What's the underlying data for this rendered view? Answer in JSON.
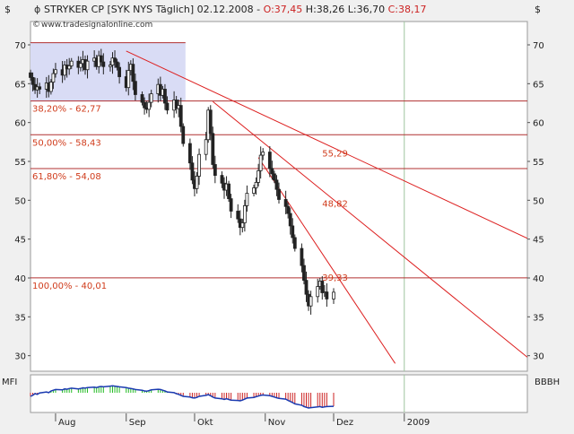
{
  "header": {
    "title": "STRYKER CP [SYK NYS  Täglich] 02.12.2008 - ",
    "ohlc_o": "O:37,45",
    "ohlc_h": " H:38,26",
    "ohlc_l": " L:36,70",
    "ohlc_c": " C:38,17",
    "watermark": "www.tradesignalonline.com",
    "currency_left": "$",
    "currency_right": "$"
  },
  "indicator": {
    "left_label": "MFI",
    "right_label": "BBBH"
  },
  "colors": {
    "background": "#ffffff",
    "panel": "#f0f0f0",
    "zone": "#d9dcf5",
    "fib_line": "#b03030",
    "trend_line": "#dd2020",
    "candle": "#222222",
    "mfi_line": "#1a3ab0",
    "mfi_up": "#22bb22",
    "mfi_down": "#cc2222"
  },
  "chart_data": {
    "type": "candlestick",
    "y_axis": {
      "min": 28,
      "max": 73,
      "ticks": [
        30,
        35,
        40,
        45,
        50,
        55,
        60,
        65,
        70
      ]
    },
    "x_axis": {
      "months": [
        "Aug",
        "Sep",
        "Okt",
        "Nov",
        "Dez",
        "2009"
      ],
      "start_date": "2008-07-21",
      "end_date": "2009-02-24"
    },
    "fibonacci": [
      {
        "label": "38,20% - 62,77",
        "value": 62.77
      },
      {
        "label": "50,00% - 58,43",
        "value": 58.43
      },
      {
        "label": "61,80% - 54,08",
        "value": 54.08
      },
      {
        "label": "100,00% - 40,01",
        "value": 40.01
      }
    ],
    "fib_zone": {
      "from_date": "2008-07-21",
      "to_date": "2008-09-27",
      "low": 62.77,
      "high": 70.27
    },
    "trendlines": [
      {
        "from": [
          "2008-09-01",
          69.2
        ],
        "to": [
          "2009-02-24",
          45.1
        ],
        "label": "55,29",
        "label_at": [
          "2008-11-26",
          55.29
        ]
      },
      {
        "from": [
          "2008-10-09",
          62.7
        ],
        "to": [
          "2009-02-24",
          29.8
        ],
        "label": "48,82",
        "label_at": [
          "2008-11-26",
          48.82
        ]
      },
      {
        "from": [
          "2008-10-29",
          55.5
        ],
        "to": [
          "2008-12-28",
          29.0
        ],
        "label": "39,33",
        "label_at": [
          "2008-11-26",
          39.33
        ]
      }
    ],
    "closes": [
      65.8,
      64.9,
      64.2,
      64.6,
      64.3,
      65.1,
      64.0,
      65.2,
      66.3,
      66.8,
      66.1,
      67.4,
      66.9,
      67.3,
      67.9,
      67.1,
      67.6,
      68.1,
      66.8,
      67.9,
      68.3,
      67.2,
      68.6,
      67.8,
      67.2,
      67.4,
      68.3,
      67.8,
      67.1,
      65.9,
      64.5,
      66.7,
      67.5,
      65.3,
      63.6,
      62.6,
      61.9,
      61.7,
      62.6,
      63.7,
      64.9,
      63.5,
      64.3,
      62.5,
      61.6,
      62.9,
      61.8,
      62.2,
      59.5,
      57.3,
      54.8,
      52.6,
      51.5,
      53.1,
      55.9,
      57.8,
      61.6,
      58.6,
      54.6,
      53.2,
      52.2,
      51.3,
      52.1,
      50.2,
      48.6,
      47.6,
      46.5,
      47.1,
      49.3,
      50.9,
      51.6,
      52.3,
      53.8,
      55.8,
      56.2,
      54.1,
      53.4,
      52.6,
      51.4,
      50.1,
      49.2,
      48.3,
      46.7,
      45.2,
      43.8,
      41.6,
      39.7,
      37.9,
      36.4,
      37.6,
      38.9,
      39.6,
      38.1,
      38.2,
      37.3,
      38.17
    ],
    "mfi": [
      0.42,
      0.45,
      0.5,
      0.48,
      0.52,
      0.55,
      0.53,
      0.58,
      0.6,
      0.62,
      0.61,
      0.64,
      0.63,
      0.65,
      0.66,
      0.64,
      0.65,
      0.67,
      0.66,
      0.68,
      0.69,
      0.68,
      0.7,
      0.71,
      0.7,
      0.72,
      0.73,
      0.72,
      0.71,
      0.7,
      0.68,
      0.66,
      0.65,
      0.64,
      0.62,
      0.6,
      0.58,
      0.57,
      0.59,
      0.61,
      0.63,
      0.62,
      0.6,
      0.58,
      0.55,
      0.53,
      0.5,
      0.48,
      0.45,
      0.42,
      0.4,
      0.38,
      0.37,
      0.39,
      0.42,
      0.45,
      0.47,
      0.44,
      0.4,
      0.37,
      0.35,
      0.33,
      0.35,
      0.33,
      0.31,
      0.3,
      0.29,
      0.31,
      0.34,
      0.37,
      0.39,
      0.41,
      0.43,
      0.45,
      0.46,
      0.44,
      0.42,
      0.4,
      0.38,
      0.36,
      0.34,
      0.3,
      0.27,
      0.24,
      0.2,
      0.16,
      0.12,
      0.1,
      0.08,
      0.09,
      0.11,
      0.12,
      0.1,
      0.11,
      0.12,
      0.13
    ]
  }
}
